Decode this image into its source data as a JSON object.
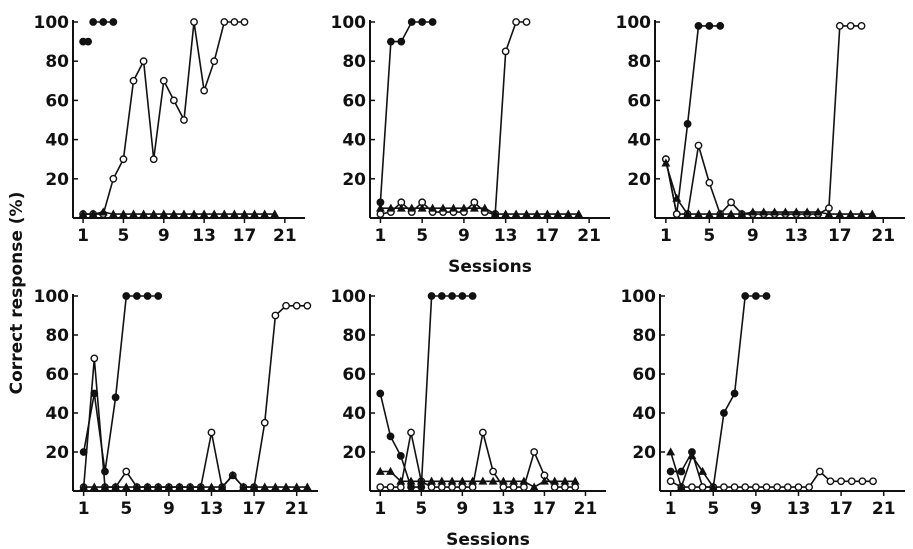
{
  "figure": {
    "ylabel": "Correct response (%)",
    "xlabel": "Sessions",
    "yticks": [
      20,
      40,
      60,
      80,
      100
    ],
    "xticks": [
      1,
      5,
      9,
      13,
      17,
      21
    ]
  },
  "chart_data": [
    {
      "type": "line",
      "panel": "top-left",
      "xlabel": "",
      "ylabel": "Correct response (%)",
      "xlim": [
        0,
        23
      ],
      "ylim": [
        0,
        100
      ],
      "series": [
        {
          "marker": "filled-circle",
          "x": [
            1,
            1.5
          ],
          "y": [
            90,
            90
          ]
        },
        {
          "marker": "filled-circle",
          "x": [
            2,
            3,
            4
          ],
          "y": [
            100,
            100,
            100
          ]
        },
        {
          "marker": "open-circle",
          "x": [
            1,
            2,
            3,
            4,
            5,
            6,
            7,
            8,
            9,
            10,
            11,
            12,
            13,
            14,
            15,
            16,
            17
          ],
          "y": [
            2,
            2,
            2,
            20,
            30,
            70,
            80,
            30,
            70,
            60,
            50,
            100,
            65,
            80,
            100,
            100,
            100
          ]
        },
        {
          "marker": "filled-triangle",
          "x": [
            1,
            2,
            3,
            4,
            5,
            6,
            7,
            8,
            9,
            10,
            11,
            12,
            13,
            14,
            15,
            16,
            17,
            18,
            19,
            20
          ],
          "y": [
            2,
            2,
            3,
            2,
            2,
            2,
            2,
            2,
            2,
            2,
            2,
            2,
            2,
            2,
            2,
            2,
            2,
            2,
            2,
            2
          ]
        }
      ]
    },
    {
      "type": "line",
      "panel": "top-middle",
      "xlabel": "Sessions",
      "ylabel": "",
      "xlim": [
        0,
        23
      ],
      "ylim": [
        0,
        100
      ],
      "series": [
        {
          "marker": "filled-circle",
          "x": [
            1,
            2,
            3,
            4,
            5,
            6
          ],
          "y": [
            8,
            90,
            90,
            100,
            100,
            100
          ]
        },
        {
          "marker": "open-circle",
          "x": [
            12,
            13,
            14,
            15
          ],
          "y": [
            2,
            85,
            100,
            100
          ]
        },
        {
          "marker": "open-circle",
          "x": [
            1,
            2,
            3,
            4,
            5,
            6,
            7,
            8,
            9,
            10,
            11,
            12
          ],
          "y": [
            2,
            3,
            8,
            3,
            8,
            3,
            3,
            3,
            3,
            8,
            3,
            2
          ]
        },
        {
          "marker": "filled-triangle",
          "x": [
            1,
            2,
            3,
            4,
            5,
            6,
            7,
            8,
            9,
            10,
            11,
            12,
            13,
            14,
            15,
            16,
            17,
            18,
            19,
            20
          ],
          "y": [
            5,
            5,
            5,
            5,
            5,
            5,
            5,
            5,
            5,
            5,
            5,
            2,
            2,
            2,
            2,
            2,
            2,
            2,
            2,
            2
          ]
        }
      ]
    },
    {
      "type": "line",
      "panel": "top-right",
      "xlabel": "",
      "ylabel": "",
      "xlim": [
        0,
        23
      ],
      "ylim": [
        0,
        100
      ],
      "series": [
        {
          "marker": "filled-circle",
          "x": [
            1,
            2,
            3,
            4,
            5,
            6
          ],
          "y": [
            30,
            2,
            48,
            98,
            98,
            98
          ]
        },
        {
          "marker": "open-circle",
          "x": [
            1,
            2,
            3,
            4,
            5,
            6,
            7,
            8,
            9,
            10,
            11,
            12,
            13,
            14,
            15,
            16,
            17,
            18,
            19
          ],
          "y": [
            30,
            2,
            2,
            37,
            18,
            2,
            8,
            2,
            2,
            2,
            2,
            2,
            2,
            2,
            2,
            5,
            98,
            98,
            98
          ]
        },
        {
          "marker": "filled-triangle",
          "x": [
            1,
            2,
            3,
            4,
            5,
            6,
            7,
            8,
            9,
            10,
            11,
            12,
            13,
            14,
            15,
            16,
            17,
            18,
            19,
            20
          ],
          "y": [
            28,
            10,
            2,
            2,
            2,
            2,
            2,
            2,
            3,
            3,
            3,
            3,
            3,
            3,
            3,
            2,
            2,
            2,
            2,
            2
          ]
        }
      ]
    },
    {
      "type": "line",
      "panel": "bottom-left",
      "xlabel": "",
      "ylabel": "",
      "xlim": [
        0,
        23
      ],
      "ylim": [
        0,
        100
      ],
      "series": [
        {
          "marker": "filled-circle",
          "x": [
            1,
            2,
            3,
            4,
            5,
            6,
            7,
            8
          ],
          "y": [
            20,
            50,
            10,
            48,
            100,
            100,
            100,
            100
          ]
        },
        {
          "marker": "open-circle",
          "x": [
            1,
            2,
            3,
            4,
            5,
            6,
            7,
            8,
            9,
            10,
            11,
            12,
            13,
            14,
            15,
            16,
            17,
            18,
            19,
            20,
            21,
            22
          ],
          "y": [
            2,
            68,
            2,
            2,
            10,
            2,
            2,
            2,
            2,
            2,
            2,
            2,
            30,
            2,
            8,
            2,
            2,
            35,
            90,
            95,
            95,
            95
          ]
        },
        {
          "marker": "filled-triangle",
          "x": [
            1,
            2,
            3,
            4,
            5,
            6,
            7,
            8,
            9,
            10,
            11,
            12,
            13,
            14,
            15,
            16,
            17,
            18,
            19,
            20,
            21,
            22
          ],
          "y": [
            2,
            2,
            2,
            2,
            2,
            2,
            2,
            2,
            2,
            2,
            2,
            2,
            2,
            2,
            8,
            2,
            2,
            2,
            2,
            2,
            2,
            2
          ]
        }
      ]
    },
    {
      "type": "line",
      "panel": "bottom-middle",
      "xlabel": "Sessions",
      "ylabel": "",
      "xlim": [
        0,
        23
      ],
      "ylim": [
        0,
        100
      ],
      "series": [
        {
          "marker": "filled-circle",
          "x": [
            1,
            2,
            3,
            4,
            5,
            6,
            7,
            8,
            9,
            10
          ],
          "y": [
            50,
            28,
            18,
            2,
            2,
            100,
            100,
            100,
            100,
            100
          ]
        },
        {
          "marker": "open-circle",
          "x": [
            1,
            2,
            3,
            4,
            5,
            6,
            7,
            8,
            9,
            10,
            11,
            12,
            13,
            14,
            15,
            16,
            17,
            18,
            19,
            20
          ],
          "y": [
            2,
            2,
            2,
            30,
            5,
            2,
            2,
            2,
            2,
            2,
            30,
            10,
            2,
            2,
            2,
            20,
            8,
            2,
            2,
            2
          ]
        },
        {
          "marker": "filled-triangle",
          "x": [
            1,
            2,
            3,
            4,
            5,
            6,
            7,
            8,
            9,
            10,
            11,
            12,
            13,
            14,
            15,
            16,
            17,
            18,
            19,
            20
          ],
          "y": [
            10,
            10,
            5,
            5,
            5,
            5,
            5,
            5,
            5,
            5,
            5,
            5,
            5,
            5,
            5,
            2,
            5,
            5,
            5,
            5
          ]
        }
      ]
    },
    {
      "type": "line",
      "panel": "bottom-right",
      "xlabel": "",
      "ylabel": "",
      "xlim": [
        0,
        23
      ],
      "ylim": [
        0,
        100
      ],
      "series": [
        {
          "marker": "filled-circle",
          "x": [
            1,
            2,
            3,
            4,
            5,
            6,
            7,
            8,
            9,
            10
          ],
          "y": [
            10,
            10,
            20,
            2,
            2,
            40,
            50,
            100,
            100,
            100
          ]
        },
        {
          "marker": "open-circle",
          "x": [
            1,
            2,
            3,
            4,
            5,
            6,
            7,
            8,
            9,
            10,
            11,
            12,
            13,
            14,
            15,
            16,
            17,
            18,
            19,
            20
          ],
          "y": [
            5,
            2,
            2,
            2,
            2,
            2,
            2,
            2,
            2,
            2,
            2,
            2,
            2,
            2,
            10,
            5,
            5,
            5,
            5,
            5
          ]
        },
        {
          "marker": "filled-triangle",
          "x": [
            1,
            2,
            3,
            4,
            5
          ],
          "y": [
            20,
            2,
            18,
            10,
            2
          ]
        }
      ]
    }
  ]
}
